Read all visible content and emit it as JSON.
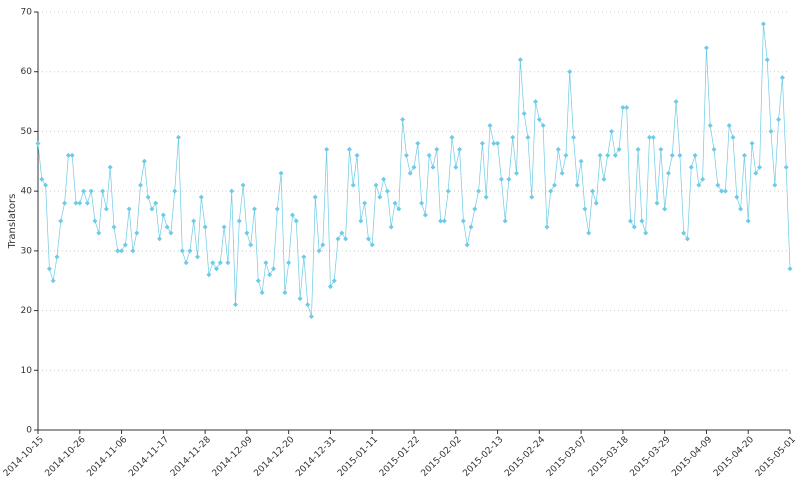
{
  "chart_data": {
    "type": "line",
    "y_label": "Translators",
    "color": "#6ecbe6",
    "grid": true,
    "ylim": [
      0,
      70
    ],
    "yticks": [
      0,
      10,
      20,
      30,
      40,
      50,
      60,
      70
    ],
    "categories": [
      "2014-10-15",
      null,
      null,
      null,
      null,
      null,
      null,
      null,
      null,
      null,
      null,
      "2014-10-26",
      null,
      null,
      null,
      null,
      null,
      null,
      null,
      null,
      null,
      null,
      "2014-11-06",
      null,
      null,
      null,
      null,
      null,
      null,
      null,
      null,
      null,
      null,
      "2014-11-17",
      null,
      null,
      null,
      null,
      null,
      null,
      null,
      null,
      null,
      null,
      "2014-11-28",
      null,
      null,
      null,
      null,
      null,
      null,
      null,
      null,
      null,
      null,
      "2014-12-09",
      null,
      null,
      null,
      null,
      null,
      null,
      null,
      null,
      null,
      null,
      "2014-12-20",
      null,
      null,
      null,
      null,
      null,
      null,
      null,
      null,
      null,
      null,
      "2014-12-31",
      null,
      null,
      null,
      null,
      null,
      null,
      null,
      null,
      null,
      null,
      "2015-01-11",
      null,
      null,
      null,
      null,
      null,
      null,
      null,
      null,
      null,
      null,
      "2015-01-22",
      null,
      null,
      null,
      null,
      null,
      null,
      null,
      null,
      null,
      null,
      "2015-02-02",
      null,
      null,
      null,
      null,
      null,
      null,
      null,
      null,
      null,
      null,
      "2015-02-13",
      null,
      null,
      null,
      null,
      null,
      null,
      null,
      null,
      null,
      null,
      "2015-02-24",
      null,
      null,
      null,
      null,
      null,
      null,
      null,
      null,
      null,
      null,
      "2015-03-07",
      null,
      null,
      null,
      null,
      null,
      null,
      null,
      null,
      null,
      null,
      "2015-03-18",
      null,
      null,
      null,
      null,
      null,
      null,
      null,
      null,
      null,
      null,
      "2015-03-29",
      null,
      null,
      null,
      null,
      null,
      null,
      null,
      null,
      null,
      null,
      "2015-04-09",
      null,
      null,
      null,
      null,
      null,
      null,
      null,
      null,
      null,
      null,
      "2015-04-20",
      null,
      null,
      null,
      null,
      null,
      null,
      null,
      null,
      null,
      null,
      "2015-05-01"
    ],
    "values": [
      48,
      42,
      41,
      27,
      25,
      29,
      35,
      38,
      46,
      46,
      38,
      38,
      40,
      38,
      40,
      35,
      33,
      40,
      37,
      44,
      34,
      30,
      30,
      31,
      37,
      30,
      33,
      41,
      45,
      39,
      37,
      38,
      32,
      36,
      34,
      33,
      40,
      49,
      30,
      28,
      30,
      35,
      29,
      39,
      34,
      26,
      28,
      27,
      28,
      34,
      28,
      40,
      21,
      35,
      41,
      33,
      31,
      37,
      25,
      23,
      28,
      26,
      27,
      37,
      43,
      23,
      28,
      36,
      35,
      22,
      29,
      21,
      19,
      39,
      30,
      31,
      47,
      24,
      25,
      32,
      33,
      32,
      47,
      41,
      46,
      35,
      38,
      32,
      31,
      41,
      39,
      42,
      40,
      34,
      38,
      37,
      52,
      46,
      43,
      44,
      48,
      38,
      36,
      46,
      44,
      47,
      35,
      35,
      40,
      49,
      44,
      47,
      35,
      31,
      34,
      37,
      40,
      48,
      39,
      51,
      48,
      48,
      42,
      35,
      42,
      49,
      43,
      62,
      53,
      49,
      39,
      55,
      52,
      51,
      34,
      40,
      41,
      47,
      43,
      46,
      60,
      49,
      41,
      45,
      37,
      33,
      40,
      38,
      46,
      42,
      46,
      50,
      46,
      47,
      54,
      54,
      35,
      34,
      47,
      35,
      33,
      49,
      49,
      38,
      47,
      37,
      43,
      46,
      55,
      46,
      33,
      32,
      44,
      46,
      41,
      42,
      64,
      51,
      47,
      41,
      40,
      40,
      51,
      49,
      39,
      37,
      46,
      35,
      48,
      43,
      44,
      68,
      62,
      50,
      41,
      52,
      59,
      44,
      27
    ]
  }
}
